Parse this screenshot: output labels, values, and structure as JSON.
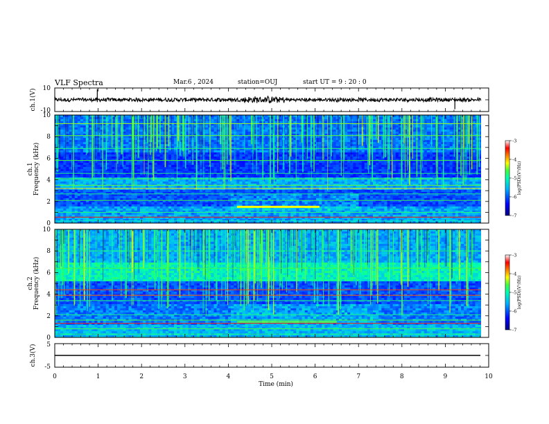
{
  "header": {
    "title": "VLF Spectra",
    "date": "Mar.6 , 2024",
    "station": "station=OUJ",
    "start": "start UT =  9 : 20 : 0"
  },
  "chart_data": [
    {
      "type": "line",
      "panel": "ch1-waveform",
      "ylabel": "ch.1(V)",
      "ylim": [
        -10,
        10
      ],
      "yticks": [
        "10",
        "-10"
      ],
      "xlim": [
        0,
        10
      ]
    },
    {
      "type": "heatmap",
      "panel": "ch1-spectrogram",
      "ylabel": "ch.1\nFrequency (kHz)",
      "ylim": [
        0,
        10
      ],
      "yticks": [
        "0",
        "2",
        "4",
        "6",
        "8",
        "10"
      ],
      "xlim": [
        0,
        10
      ],
      "colorbar": {
        "label": "log(PSD)(V²/Hz)",
        "range": [
          -7,
          -3
        ],
        "ticks": [
          "-3",
          "-4",
          "-5",
          "-6",
          "-7"
        ]
      }
    },
    {
      "type": "heatmap",
      "panel": "ch2-spectrogram",
      "ylabel": "ch.2\nFrequency (kHz)",
      "ylim": [
        0,
        10
      ],
      "yticks": [
        "0",
        "2",
        "4",
        "6",
        "8",
        "10"
      ],
      "xlim": [
        0,
        10
      ],
      "colorbar": {
        "label": "log(PSD)(V²/Hz)",
        "range": [
          -7,
          -3
        ],
        "ticks": [
          "-3",
          "-4",
          "-5",
          "-6",
          "-7"
        ]
      }
    },
    {
      "type": "line",
      "panel": "ch3-waveform",
      "ylabel": "ch.3(V)",
      "ylim": [
        -5,
        5
      ],
      "yticks": [
        "5",
        "0",
        "-5"
      ],
      "xlim": [
        0,
        10
      ]
    }
  ],
  "xaxis": {
    "label": "Time (min)",
    "ticks": [
      "0",
      "1",
      "2",
      "3",
      "4",
      "5",
      "6",
      "7",
      "8",
      "9",
      "10"
    ]
  },
  "colors": {
    "spectrum_stops": [
      "#000080",
      "#0000ff",
      "#00b0ff",
      "#00ffb0",
      "#40ff40",
      "#ffff00",
      "#ff8000",
      "#ff0000",
      "#ffffff"
    ]
  }
}
